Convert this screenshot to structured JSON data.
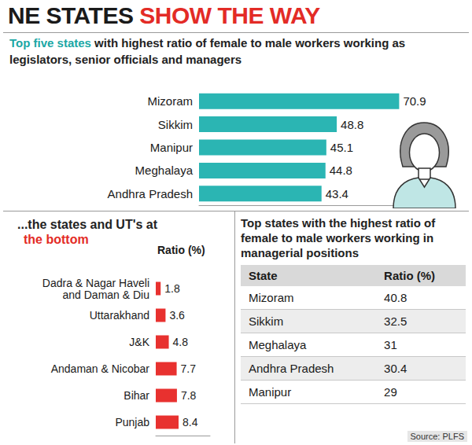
{
  "header": {
    "title": "NE STATES",
    "title_highlight": "SHOW THE WAY"
  },
  "chart_data": [
    {
      "type": "bar",
      "orientation": "horizontal",
      "title": "Top five states",
      "subtitle": "with highest ratio of female to male workers working as legislators, senior officials and managers",
      "annotation": "Ratio (%)",
      "categories": [
        "Mizoram",
        "Sikkim",
        "Manipur",
        "Meghalaya",
        "Andhra Pradesh"
      ],
      "values": [
        70.9,
        48.8,
        45.1,
        44.8,
        43.4
      ],
      "color": "#2bb5b3",
      "xlim": [
        0,
        85
      ],
      "data_labels": true,
      "tick_labels": "y",
      "grid": false
    },
    {
      "type": "bar",
      "orientation": "horizontal",
      "title": "...the states and UT's at",
      "subtitle": "the bottom",
      "annotation": "Ratio (%)",
      "categories": [
        "Dadra & Nagar Haveli and Daman & Diu",
        "Uttarakhand",
        "J&K",
        "Andaman & Nicobar",
        "Bihar",
        "Punjab"
      ],
      "values": [
        1.8,
        3.6,
        4.8,
        7.7,
        7.8,
        8.4
      ],
      "color": "#e8312f",
      "xlim": [
        0,
        20
      ],
      "data_labels": true,
      "tick_labels": "y",
      "grid": false
    }
  ],
  "table": {
    "title": "Top states with the highest ratio of female to male workers working in managerial positions",
    "columns": [
      "State",
      "Ratio (%)"
    ],
    "rows": [
      [
        "Mizoram",
        40.8
      ],
      [
        "Sikkim",
        32.5
      ],
      [
        "Meghalaya",
        31
      ],
      [
        "Andhra Pradesh",
        30.4
      ],
      [
        "Manipur",
        29
      ]
    ]
  },
  "source": "Source: PLFS"
}
